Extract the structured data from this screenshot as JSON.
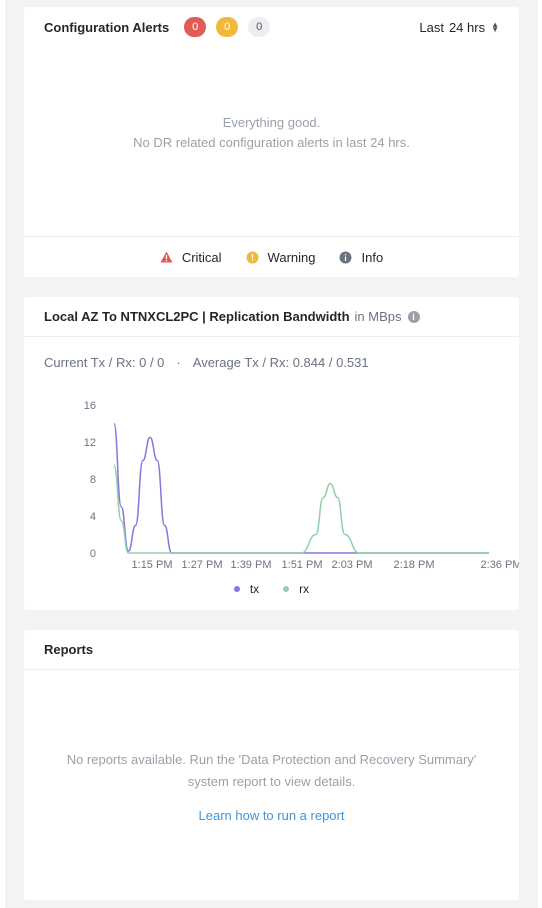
{
  "alerts": {
    "title": "Configuration Alerts",
    "counts": {
      "critical": "0",
      "warning": "0",
      "info": "0"
    },
    "range_prefix": "Last",
    "range_value": "24 hrs",
    "empty_line1": "Everything good.",
    "empty_line2": "No DR related configuration alerts in last 24 hrs.",
    "legend": {
      "critical": "Critical",
      "warning": "Warning",
      "info": "Info"
    },
    "colors": {
      "critical": "#e05c55",
      "warning": "#f0b93a",
      "info": "#6b7280"
    }
  },
  "bandwidth": {
    "title": "Local AZ To NTNXCL2PC | Replication Bandwidth",
    "unit": "in MBps",
    "current": "Current Tx / Rx: 0 / 0",
    "separator": "·",
    "average": "Average Tx / Rx: 0.844 / 0.531"
  },
  "chart_data": {
    "type": "line",
    "y_ticks": [
      "16",
      "12",
      "8",
      "4",
      "0"
    ],
    "ylim": [
      0,
      16
    ],
    "x_ticks": [
      "1:15 PM",
      "1:27 PM",
      "1:39 PM",
      "1:51 PM",
      "2:03 PM",
      "2:18 PM",
      "2:36 PM"
    ],
    "grid": false,
    "legend_position": "bottom",
    "series": [
      {
        "name": "tx",
        "color": "#8a74e0",
        "points": [
          [
            0,
            14.0
          ],
          [
            1,
            5.0
          ],
          [
            2,
            0.2
          ],
          [
            3,
            3.0
          ],
          [
            4,
            10.0
          ],
          [
            5,
            12.5
          ],
          [
            6,
            10.0
          ],
          [
            7,
            3.0
          ],
          [
            8,
            0.0
          ],
          [
            30,
            0.0
          ],
          [
            31,
            0.0
          ],
          [
            52,
            0.0
          ]
        ]
      },
      {
        "name": "rx",
        "color": "#8fd1a8",
        "points": [
          [
            0,
            9.5
          ],
          [
            1,
            3.5
          ],
          [
            2,
            0.0
          ],
          [
            3,
            0.0
          ],
          [
            26,
            0.0
          ],
          [
            28,
            2.0
          ],
          [
            29,
            6.0
          ],
          [
            30,
            7.5
          ],
          [
            31,
            6.0
          ],
          [
            32,
            2.0
          ],
          [
            34,
            0.0
          ],
          [
            52,
            0.0
          ]
        ]
      }
    ]
  },
  "reports": {
    "title": "Reports",
    "message_line1": "No reports available. Run the 'Data Protection and Recovery Summary'",
    "message_line2": "system report to view details.",
    "link": "Learn how to run a report"
  }
}
